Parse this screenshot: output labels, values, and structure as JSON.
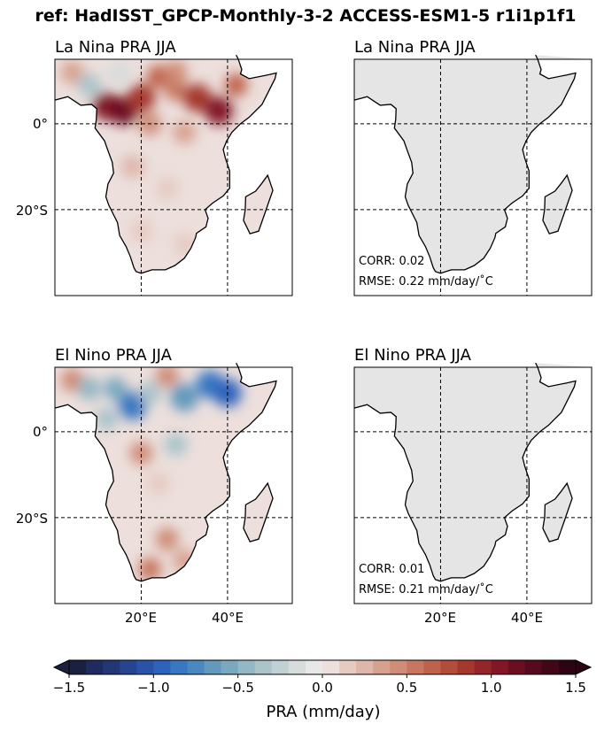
{
  "figure": {
    "title": "ref: HadISST_GPCP-Monthly-3-2 ACCESS-ESM1-5 r1i1p1f1"
  },
  "panels": [
    {
      "id": "ref-lanina",
      "title": "La Nina PRA JJA",
      "kind": "reference",
      "stats": null
    },
    {
      "id": "model-lanina",
      "title": "La Nina PRA JJA",
      "kind": "model",
      "stats": {
        "corr": "CORR: 0.02",
        "rmse": "RMSE: 0.22 mm/day/˚C"
      }
    },
    {
      "id": "ref-elnino",
      "title": "El Nino PRA JJA",
      "kind": "reference",
      "stats": null
    },
    {
      "id": "model-elnino",
      "title": "El Nino PRA JJA",
      "kind": "model",
      "stats": {
        "corr": "CORR: 0.01",
        "rmse": "RMSE: 0.21 mm/day/˚C"
      }
    }
  ],
  "chart_data": {
    "type": "heatmap",
    "map_extent": {
      "lon": [
        0,
        55
      ],
      "lat": [
        -40,
        15
      ]
    },
    "gridlines": {
      "lon": [
        20,
        40
      ],
      "lat": [
        0,
        -20
      ],
      "style": "dashed"
    },
    "xticks": [
      "20°E",
      "40°E"
    ],
    "yticks": [
      "0°",
      "20°S"
    ],
    "colorbar": {
      "label": "PRA (mm/day)",
      "ticks": [
        "−1.5",
        "−1.0",
        "−0.5",
        "0.0",
        "0.5",
        "1.0",
        "1.5"
      ],
      "tick_values": [
        -1.5,
        -1.0,
        -0.5,
        0.0,
        0.5,
        1.0,
        1.5
      ],
      "range": [
        -1.5,
        1.5
      ],
      "levels": 30,
      "extend": "both",
      "colors": [
        "#1b2040",
        "#1f2a5e",
        "#233676",
        "#27448f",
        "#2a53a8",
        "#2d62bd",
        "#3877c2",
        "#4c88bf",
        "#6399bd",
        "#7aa9bf",
        "#93b7c4",
        "#aac4ca",
        "#c1d0d3",
        "#d7dcdd",
        "#e9e8e8",
        "#ecdfdc",
        "#e6cbc3",
        "#dfb6aa",
        "#d7a190",
        "#cf8c77",
        "#c77760",
        "#bf624b",
        "#b34c39",
        "#a5372e",
        "#952529",
        "#821626",
        "#6c0e22",
        "#560a1d",
        "#410718",
        "#2d0414"
      ]
    },
    "model_panel_fill": "#e5e5e5",
    "description_cells": {
      "lanina_ref": [
        {
          "lon": 4,
          "lat": 12,
          "v": 0.3
        },
        {
          "lon": 8,
          "lat": 9,
          "v": -0.3
        },
        {
          "lon": 12,
          "lat": 4,
          "v": 1.0
        },
        {
          "lon": 16,
          "lat": 3,
          "v": 1.1
        },
        {
          "lon": 20,
          "lat": 6,
          "v": 0.8
        },
        {
          "lon": 24,
          "lat": 11,
          "v": 0.6
        },
        {
          "lon": 28,
          "lat": 8,
          "v": 0.5
        },
        {
          "lon": 33,
          "lat": 6,
          "v": 0.9
        },
        {
          "lon": 38,
          "lat": 3,
          "v": 1.0
        },
        {
          "lon": 42,
          "lat": 9,
          "v": 0.6
        },
        {
          "lon": 22,
          "lat": 0,
          "v": 0.4
        },
        {
          "lon": 30,
          "lat": -2,
          "v": 0.3
        },
        {
          "lon": 18,
          "lat": -10,
          "v": 0.2
        },
        {
          "lon": 26,
          "lat": -15,
          "v": 0.15
        },
        {
          "lon": 20,
          "lat": -25,
          "v": 0.1
        },
        {
          "lon": 30,
          "lat": -28,
          "v": 0.15
        },
        {
          "lon": 15,
          "lat": 12,
          "v": -0.2
        },
        {
          "lon": 28,
          "lat": 12,
          "v": 0.4
        }
      ],
      "elnino_ref": [
        {
          "lon": 4,
          "lat": 12,
          "v": 0.4
        },
        {
          "lon": 8,
          "lat": 10,
          "v": -0.5
        },
        {
          "lon": 14,
          "lat": 10,
          "v": -0.6
        },
        {
          "lon": 18,
          "lat": 6,
          "v": -0.8
        },
        {
          "lon": 22,
          "lat": 9,
          "v": -0.4
        },
        {
          "lon": 30,
          "lat": 8,
          "v": -0.7
        },
        {
          "lon": 36,
          "lat": 11,
          "v": -0.8
        },
        {
          "lon": 40,
          "lat": 9,
          "v": -1.0
        },
        {
          "lon": 26,
          "lat": 13,
          "v": 0.4
        },
        {
          "lon": 12,
          "lat": 3,
          "v": -0.4
        },
        {
          "lon": 20,
          "lat": -5,
          "v": 0.4
        },
        {
          "lon": 28,
          "lat": -3,
          "v": -0.3
        },
        {
          "lon": 24,
          "lat": -12,
          "v": 0.15
        },
        {
          "lon": 26,
          "lat": -25,
          "v": 0.4
        },
        {
          "lon": 22,
          "lat": -32,
          "v": 0.5
        },
        {
          "lon": 30,
          "lat": -30,
          "v": 0.35
        }
      ]
    }
  }
}
